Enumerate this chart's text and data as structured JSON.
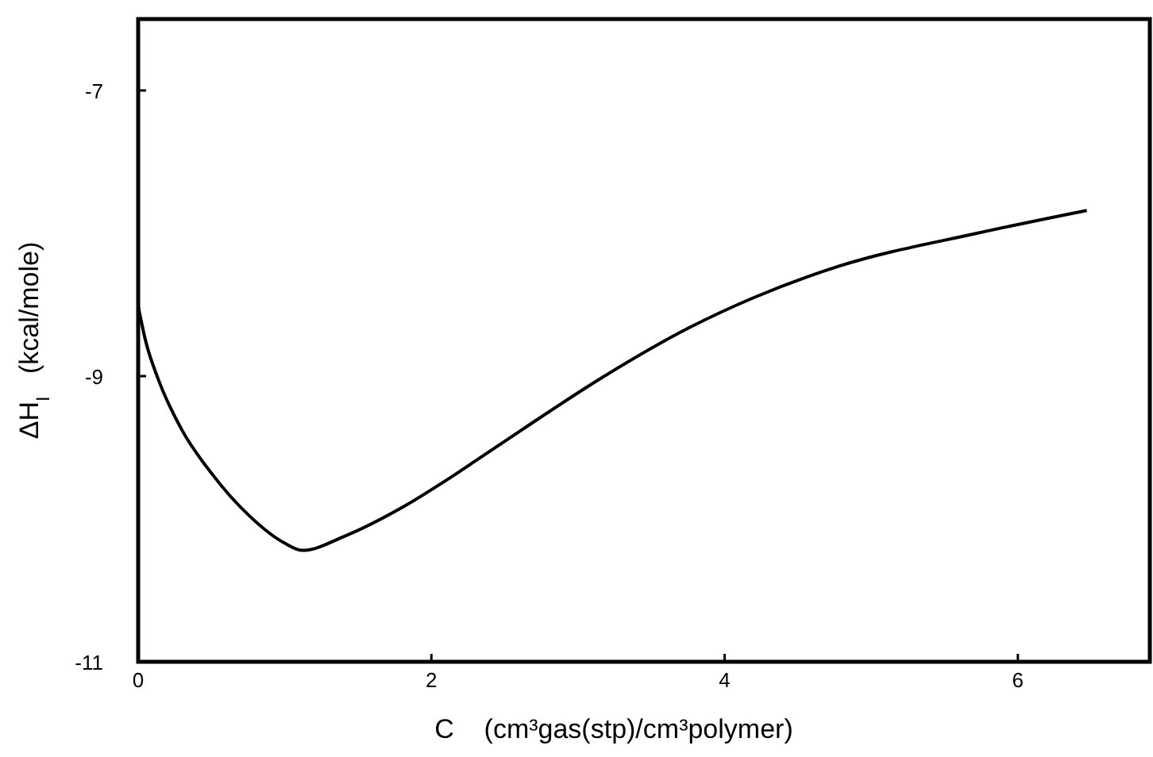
{
  "chart_data": {
    "type": "line",
    "xlabel": "C    (cm³gas(stp)/cm³polymer)",
    "ylabel": "ΔH$_{I}$   (kcal/mole)",
    "x": [
      0,
      0.05,
      0.14,
      0.3,
      0.5,
      0.76,
      1.0,
      1.12,
      1.41,
      1.8,
      2.1,
      2.32,
      2.64,
      3.18,
      3.76,
      4.2,
      4.78,
      5.72,
      6.47
    ],
    "series": [
      {
        "color": "#000000",
        "values": [
          -8.51,
          -8.75,
          -9.03,
          -9.38,
          -9.68,
          -9.98,
          -10.17,
          -10.22,
          -10.12,
          -9.92,
          -9.73,
          -9.58,
          -9.36,
          -9.0,
          -8.66,
          -8.45,
          -8.23,
          -8.0,
          -7.84
        ]
      }
    ],
    "xlim": [
      0,
      6.9
    ],
    "ylim": [
      -11,
      -6.5
    ],
    "xticks": [
      0,
      2,
      4,
      6
    ],
    "yticks": [
      -7,
      -9,
      -11
    ],
    "marker": "none",
    "line_style": "solid"
  }
}
